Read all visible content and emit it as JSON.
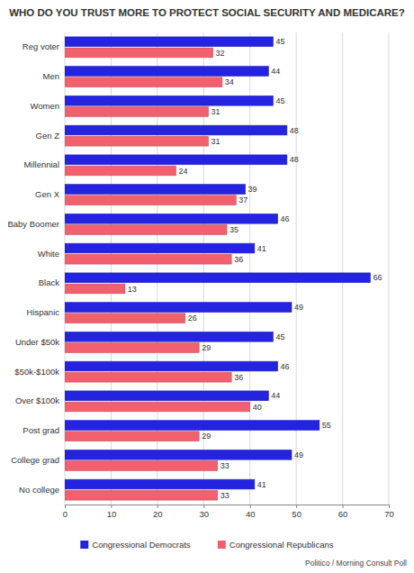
{
  "chart_data": {
    "type": "bar",
    "orientation": "horizontal",
    "title": "WHO DO YOU TRUST MORE TO PROTECT SOCIAL SECURITY AND MEDICARE?",
    "categories": [
      "Reg voter",
      "Men",
      "Women",
      "Gen Z",
      "Millennial",
      "Gen X",
      "Baby Boomer",
      "White",
      "Black",
      "Hispanic",
      "Under $50k",
      "$50k-$100k",
      "Over $100k",
      "Post grad",
      "College grad",
      "No college"
    ],
    "series": [
      {
        "name": "Congressional Democrats",
        "color": "#2424e0",
        "values": [
          45,
          44,
          45,
          48,
          48,
          39,
          46,
          41,
          66,
          49,
          45,
          46,
          44,
          55,
          49,
          41
        ]
      },
      {
        "name": "Congressional Republicans",
        "color": "#f2606e",
        "values": [
          32,
          34,
          31,
          31,
          24,
          37,
          35,
          36,
          13,
          26,
          29,
          36,
          40,
          29,
          33,
          33
        ]
      }
    ],
    "xlim": [
      0,
      70
    ],
    "xticks": [
      0,
      10,
      20,
      30,
      40,
      50,
      60,
      70
    ],
    "grid": true,
    "legend": "bottom",
    "data_labels": true,
    "annotations": [
      "Politico / Morning Consult Poll"
    ]
  }
}
